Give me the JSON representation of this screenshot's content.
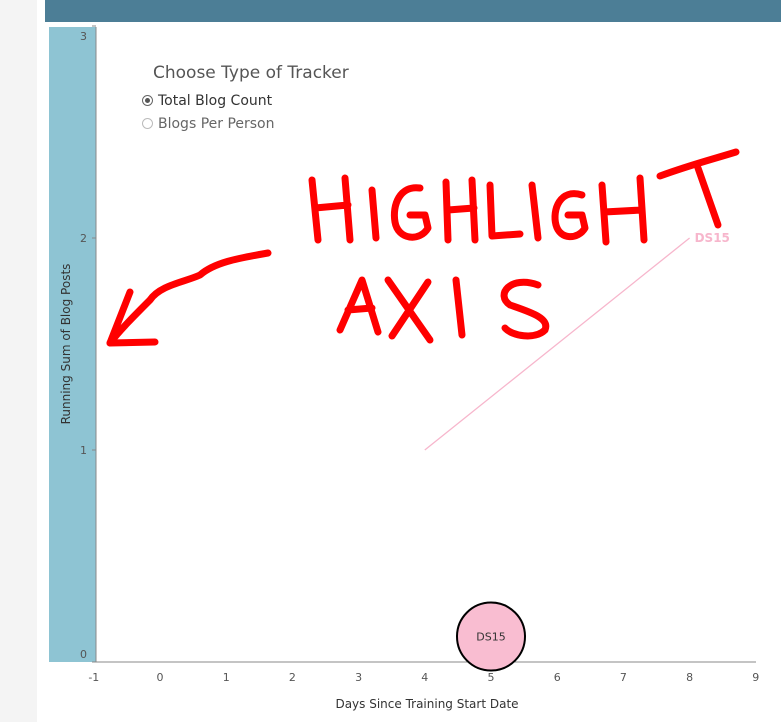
{
  "tracker": {
    "title": "Choose Type of Tracker",
    "options": [
      {
        "label": "Total Blog Count",
        "selected": true
      },
      {
        "label": "Blogs Per Person",
        "selected": false
      }
    ]
  },
  "chart_data": {
    "type": "line",
    "xlabel": "Days Since Training Start Date",
    "ylabel": "Running Sum of Blog Posts",
    "xlim": [
      -1,
      9
    ],
    "ylim": [
      0,
      3
    ],
    "x_ticks": [
      "-1",
      "0",
      "1",
      "2",
      "3",
      "4",
      "5",
      "6",
      "7",
      "8",
      "9"
    ],
    "y_ticks": [
      "0",
      "1",
      "2",
      "3"
    ],
    "grid": false,
    "series": [
      {
        "name": "DS15",
        "x": [
          4,
          8
        ],
        "y": [
          1,
          2
        ],
        "color": "#f7b6cc",
        "end_label": "DS15"
      }
    ],
    "marker": {
      "label": "DS15",
      "x": 5,
      "y": 0.12,
      "color": "#f9bdd1"
    },
    "highlighted_axis_color": "#8ec4d3"
  },
  "annotation": {
    "text": "HIGHLIGHT AXIS",
    "color": "#ff0000"
  }
}
